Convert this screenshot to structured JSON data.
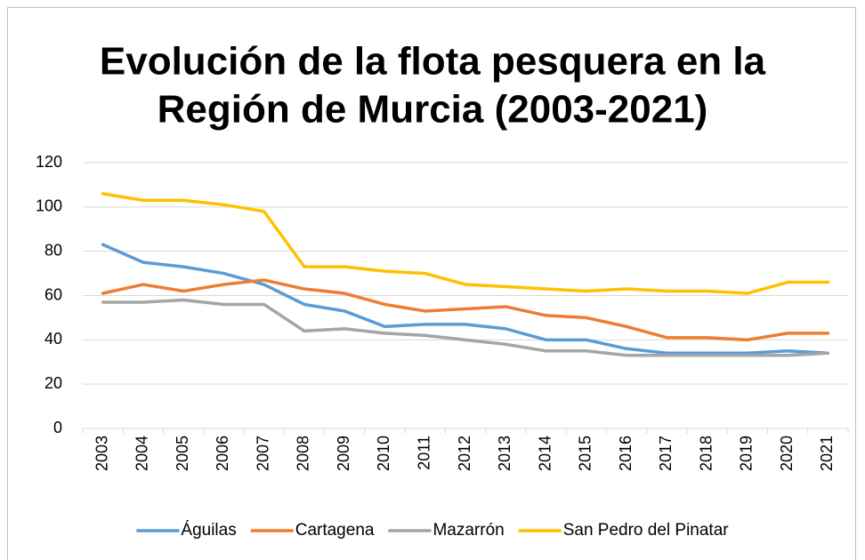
{
  "chart_data": {
    "type": "line",
    "title": [
      "Evolución de la flota pesquera en la",
      "Región de Murcia (2003-2021)"
    ],
    "categories": [
      "2003",
      "2004",
      "2005",
      "2006",
      "2007",
      "2008",
      "2009",
      "2010",
      "2011",
      "2012",
      "2013",
      "2014",
      "2015",
      "2016",
      "2017",
      "2018",
      "2019",
      "2020",
      "2021"
    ],
    "series": [
      {
        "name": "Águilas",
        "color": "#5b9bd5",
        "values": [
          83,
          75,
          73,
          70,
          65,
          56,
          53,
          46,
          47,
          47,
          45,
          40,
          40,
          36,
          34,
          34,
          34,
          35,
          34
        ]
      },
      {
        "name": "Cartagena",
        "color": "#ed7d31",
        "values": [
          61,
          65,
          62,
          65,
          67,
          63,
          61,
          56,
          53,
          54,
          55,
          51,
          50,
          46,
          41,
          41,
          40,
          43,
          43
        ]
      },
      {
        "name": "Mazarrón",
        "color": "#a5a5a5",
        "values": [
          57,
          57,
          58,
          56,
          56,
          44,
          45,
          43,
          42,
          40,
          38,
          35,
          35,
          33,
          33,
          33,
          33,
          33,
          34
        ]
      },
      {
        "name": "San Pedro del Pinatar",
        "color": "#ffc000",
        "values": [
          106,
          103,
          103,
          101,
          98,
          73,
          73,
          71,
          70,
          65,
          64,
          63,
          62,
          63,
          62,
          62,
          61,
          66,
          66
        ]
      }
    ],
    "ylim": [
      0,
      120
    ],
    "yticks": [
      0,
      20,
      40,
      60,
      80,
      100,
      120
    ],
    "grid": true,
    "legend": "bottom"
  }
}
